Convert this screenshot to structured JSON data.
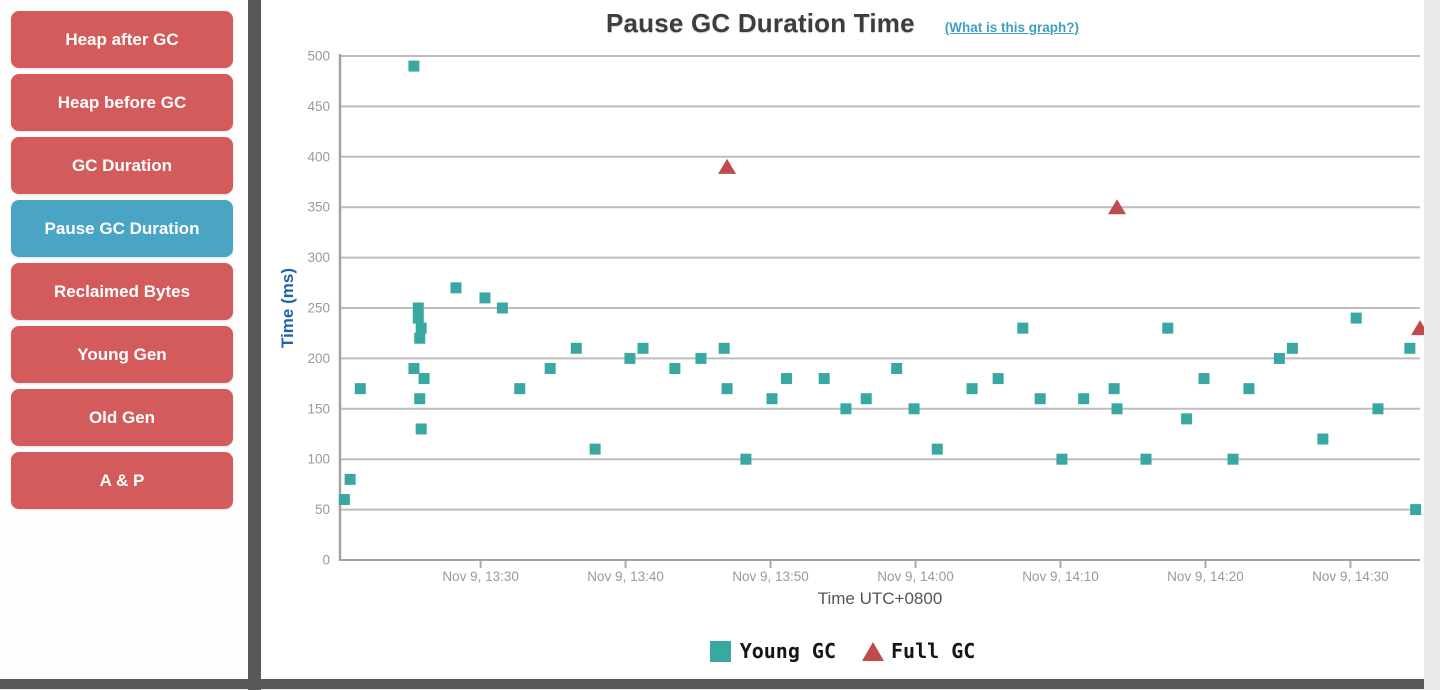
{
  "sidebar": {
    "buttons": [
      {
        "label": "Heap after GC",
        "active": false
      },
      {
        "label": "Heap before GC",
        "active": false
      },
      {
        "label": "GC Duration",
        "active": false
      },
      {
        "label": "Pause GC Duration",
        "active": true
      },
      {
        "label": "Reclaimed Bytes",
        "active": false
      },
      {
        "label": "Young Gen",
        "active": false
      },
      {
        "label": "Old Gen",
        "active": false
      },
      {
        "label": "A & P",
        "active": false
      }
    ]
  },
  "chart": {
    "title": "Pause GC Duration Time",
    "help_link": "(What is this graph?)",
    "y_axis_label": "Time (ms)",
    "x_axis_label": "Time UTC+0800",
    "legend": {
      "young": "Young GC",
      "full": "Full GC"
    }
  },
  "colors": {
    "young": "#38a8a1",
    "full": "#bf4b4b",
    "button": "#d45b5b",
    "button_active": "#4aa4c4",
    "grid": "#bdbdbd",
    "axis": "#a3a3a3",
    "tick_mark": "#aaaaaa",
    "tick_text": "#999999",
    "y_title": "#2263a8",
    "x_title": "#555555",
    "link": "#3fa0c0",
    "title": "#3d3d3d",
    "splitter": "#56585a"
  },
  "chart_data": {
    "type": "scatter",
    "title": "Pause GC Duration Time",
    "xlabel": "Time UTC+0800",
    "ylabel": "Time (ms)",
    "ylim": [
      0,
      500
    ],
    "y_ticks": [
      0,
      50,
      100,
      150,
      200,
      250,
      300,
      350,
      400,
      450,
      500
    ],
    "x_tick_labels": [
      "Nov 9, 13:30",
      "Nov 9, 13:40",
      "Nov 9, 13:50",
      "Nov 9, 14:00",
      "Nov 9, 14:10",
      "Nov 9, 14:20",
      "Nov 9, 14:30"
    ],
    "x_tick_minutes_after_13h": [
      30,
      40,
      50,
      60,
      70,
      80,
      90
    ],
    "x_domain_minutes_after_13h": [
      20.3,
      94.8
    ],
    "grid": true,
    "legend_position": "bottom",
    "series": [
      {
        "name": "Young GC",
        "marker": "square",
        "color": "#38a8a1",
        "points": [
          {
            "t": 20.6,
            "ms": 60
          },
          {
            "t": 21.0,
            "ms": 80
          },
          {
            "t": 21.7,
            "ms": 170
          },
          {
            "t": 25.4,
            "ms": 490
          },
          {
            "t": 25.7,
            "ms": 250
          },
          {
            "t": 25.7,
            "ms": 240
          },
          {
            "t": 25.9,
            "ms": 230
          },
          {
            "t": 25.8,
            "ms": 220
          },
          {
            "t": 25.4,
            "ms": 190
          },
          {
            "t": 26.1,
            "ms": 180
          },
          {
            "t": 25.8,
            "ms": 160
          },
          {
            "t": 25.9,
            "ms": 130
          },
          {
            "t": 28.3,
            "ms": 270
          },
          {
            "t": 30.3,
            "ms": 260
          },
          {
            "t": 31.5,
            "ms": 250
          },
          {
            "t": 32.7,
            "ms": 170
          },
          {
            "t": 34.8,
            "ms": 190
          },
          {
            "t": 36.6,
            "ms": 210
          },
          {
            "t": 37.9,
            "ms": 110
          },
          {
            "t": 40.3,
            "ms": 200
          },
          {
            "t": 41.2,
            "ms": 210
          },
          {
            "t": 43.4,
            "ms": 190
          },
          {
            "t": 45.2,
            "ms": 200
          },
          {
            "t": 46.8,
            "ms": 210
          },
          {
            "t": 47.0,
            "ms": 170
          },
          {
            "t": 48.3,
            "ms": 100
          },
          {
            "t": 50.1,
            "ms": 160
          },
          {
            "t": 51.1,
            "ms": 180
          },
          {
            "t": 53.7,
            "ms": 180
          },
          {
            "t": 55.2,
            "ms": 150
          },
          {
            "t": 56.6,
            "ms": 160
          },
          {
            "t": 58.7,
            "ms": 190
          },
          {
            "t": 59.9,
            "ms": 150
          },
          {
            "t": 61.5,
            "ms": 110
          },
          {
            "t": 63.9,
            "ms": 170
          },
          {
            "t": 65.7,
            "ms": 180
          },
          {
            "t": 67.4,
            "ms": 230
          },
          {
            "t": 68.6,
            "ms": 160
          },
          {
            "t": 70.1,
            "ms": 100
          },
          {
            "t": 71.6,
            "ms": 160
          },
          {
            "t": 73.7,
            "ms": 170
          },
          {
            "t": 73.9,
            "ms": 150
          },
          {
            "t": 75.9,
            "ms": 100
          },
          {
            "t": 77.4,
            "ms": 230
          },
          {
            "t": 78.7,
            "ms": 140
          },
          {
            "t": 79.9,
            "ms": 180
          },
          {
            "t": 81.9,
            "ms": 100
          },
          {
            "t": 83.0,
            "ms": 170
          },
          {
            "t": 85.1,
            "ms": 200
          },
          {
            "t": 86.0,
            "ms": 210
          },
          {
            "t": 88.1,
            "ms": 120
          },
          {
            "t": 90.4,
            "ms": 240
          },
          {
            "t": 91.9,
            "ms": 150
          },
          {
            "t": 94.1,
            "ms": 210
          },
          {
            "t": 94.5,
            "ms": 50
          }
        ]
      },
      {
        "name": "Full GC",
        "marker": "triangle",
        "color": "#bf4b4b",
        "points": [
          {
            "t": 47.0,
            "ms": 390
          },
          {
            "t": 73.9,
            "ms": 350
          },
          {
            "t": 94.8,
            "ms": 230
          }
        ]
      }
    ]
  }
}
